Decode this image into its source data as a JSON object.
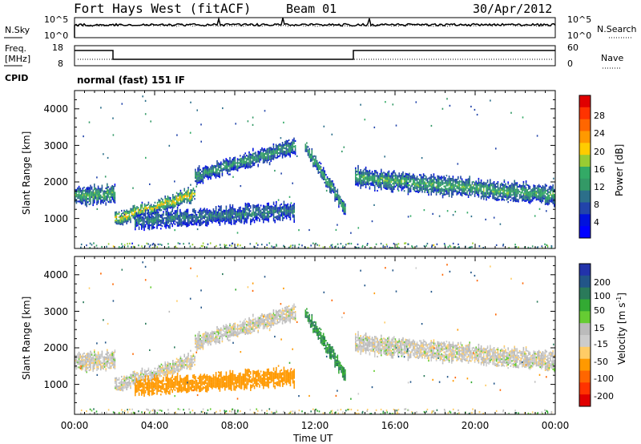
{
  "header": {
    "station": "Fort Hays West (fitACF)",
    "beam": "Beam 01",
    "date": "30/Apr/2012"
  },
  "noise_panel": {
    "left_label": "N.Sky",
    "right_label": "N.Search",
    "left_ticks": [
      "10^5",
      "10^0"
    ],
    "right_ticks": [
      "10^5",
      "10^0"
    ]
  },
  "freq_panel": {
    "left_label_line1": "Freq.",
    "left_label_line2": "[MHz]",
    "right_label": "Nave",
    "left_ticks": [
      "18",
      "8"
    ],
    "right_ticks": [
      "60",
      "0"
    ],
    "cpid_label": "CPID",
    "cpid_text": "normal (fast) 151 IF"
  },
  "power_legend": {
    "label": "Power [dB]",
    "ticks": [
      "28",
      "24",
      "20",
      "16",
      "12",
      "8",
      "4"
    ],
    "colors": [
      "#e00000",
      "#ff3300",
      "#ff6600",
      "#ff9900",
      "#ffcc00",
      "#99cc33",
      "#33aa66",
      "#339966",
      "#2c6f8a",
      "#2244aa",
      "#0011dd",
      "#0000ff"
    ]
  },
  "velocity_legend": {
    "label_main": "Velocity [m s",
    "label_sup": "-1",
    "label_end": "]",
    "ticks": [
      "200",
      "100",
      "50",
      "15",
      "-15",
      "-50",
      "-100",
      "-200"
    ],
    "colors": [
      "#2233aa",
      "#225588",
      "#2a7a5a",
      "#33aa33",
      "#66cc33",
      "#bbbbbb",
      "#cccccc",
      "#ffcc66",
      "#ff9900",
      "#ff6600",
      "#ff3300",
      "#e00000"
    ]
  },
  "axes": {
    "ylabel": "Slant Range [km]",
    "xlabel": "Time UT",
    "x_ticks": [
      "00:00",
      "04:00",
      "08:00",
      "12:00",
      "16:00",
      "20:00",
      "00:00"
    ],
    "y_ticks": [
      "4000",
      "3000",
      "2000",
      "1000"
    ]
  },
  "chart_data": {
    "type": "heatmap",
    "x_range_hours": [
      0,
      24
    ],
    "y_range_km": [
      180,
      4500
    ],
    "segments": [
      {
        "t": [
          0,
          2
        ],
        "center_km": [
          1650,
          1700
        ],
        "half_width_km": 200,
        "power_db": 14,
        "velocity": -5
      },
      {
        "t": [
          2,
          6
        ],
        "center_km": [
          1000,
          1700
        ],
        "half_width_km": 150,
        "power_db": 20,
        "velocity": -5
      },
      {
        "t": [
          6,
          11
        ],
        "center_km": [
          2200,
          3000
        ],
        "half_width_km": 180,
        "power_db": 12,
        "velocity": -5
      },
      {
        "t": [
          3,
          11
        ],
        "center_km": [
          950,
          1250
        ],
        "half_width_km": 200,
        "power_db": 10,
        "velocity": -60
      },
      {
        "t": [
          11.5,
          13.5
        ],
        "center_km": [
          3000,
          1300
        ],
        "half_width_km": 150,
        "power_db": 14,
        "velocity": 30
      },
      {
        "t": [
          14,
          24
        ],
        "center_km": [
          2150,
          1650
        ],
        "half_width_km": 220,
        "power_db": 14,
        "velocity": -5
      }
    ]
  }
}
